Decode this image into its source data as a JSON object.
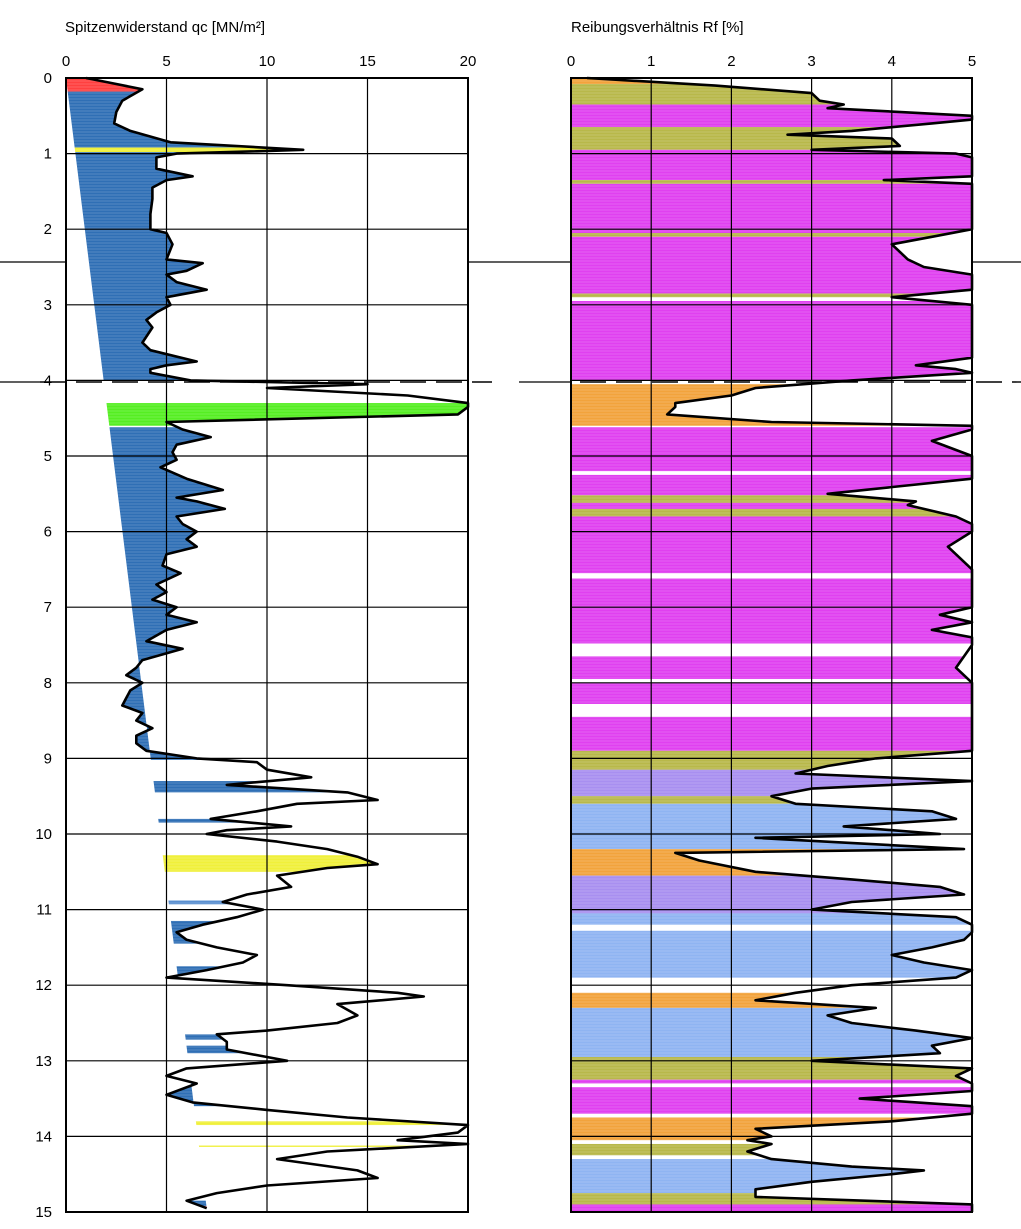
{
  "chart_data": [
    {
      "type": "area",
      "title": "Spitzenwiderstand qc [MN/m²]",
      "xlim": [
        0,
        20
      ],
      "x_ticks": [
        "0",
        "5",
        "10",
        "15",
        "20"
      ],
      "ylim": [
        0,
        15
      ],
      "y_ticks": [
        "0",
        "1",
        "2",
        "3",
        "4",
        "5",
        "6",
        "7",
        "8",
        "9",
        "10",
        "11",
        "12",
        "13",
        "14",
        "15"
      ],
      "grid": true,
      "series": [
        {
          "depth": [
            0.0,
            0.08,
            0.15,
            0.3,
            0.45,
            0.6,
            0.7,
            0.85,
            0.95,
            0.97,
            1.0,
            1.05,
            1.1,
            1.2,
            1.3,
            1.35,
            1.45,
            1.6,
            1.8,
            2.0,
            2.05,
            2.2,
            2.4,
            2.45,
            2.55,
            2.6,
            2.7,
            2.8,
            2.9,
            3.0,
            3.1,
            3.2,
            3.3,
            3.5,
            3.6,
            3.75,
            3.8,
            3.85,
            3.9,
            4.0,
            4.05,
            4.1,
            4.2,
            4.3,
            4.35,
            4.45,
            4.55,
            4.65,
            4.75,
            4.85,
            4.95,
            5.05,
            5.15,
            5.3,
            5.45,
            5.55,
            5.6,
            5.7,
            5.8,
            5.9,
            6.0,
            6.1,
            6.2,
            6.3,
            6.45,
            6.55,
            6.7,
            6.8,
            6.9,
            7.0,
            7.1,
            7.2,
            7.3,
            7.45,
            7.55,
            7.7,
            7.8,
            7.9,
            8.0,
            8.1,
            8.2,
            8.3,
            8.4,
            8.5,
            8.6,
            8.7,
            8.8,
            8.9,
            9.0,
            9.05,
            9.15,
            9.25,
            9.35,
            9.45,
            9.55,
            9.6,
            9.7,
            9.8,
            9.9,
            9.95,
            10.0,
            10.1,
            10.2,
            10.3,
            10.4,
            10.45,
            10.55,
            10.7,
            10.8,
            10.9,
            11.0,
            11.1,
            11.2,
            11.3,
            11.4,
            11.5,
            11.6,
            11.7,
            11.8,
            11.9,
            12.0,
            12.1,
            12.15,
            12.25,
            12.4,
            12.5,
            12.6,
            12.65,
            12.75,
            12.85,
            12.95,
            13.0,
            13.1,
            13.2,
            13.3,
            13.45,
            13.55,
            13.65,
            13.75,
            13.85,
            13.95,
            14.05,
            14.1,
            14.2,
            14.3,
            14.45,
            14.55,
            14.65,
            14.75,
            14.85,
            14.95,
            15.0
          ],
          "qc": [
            1.0,
            2.5,
            3.8,
            2.8,
            2.5,
            2.4,
            3.2,
            5.2,
            11.8,
            9.5,
            5.5,
            4.5,
            4.5,
            4.5,
            6.3,
            5.0,
            4.3,
            4.3,
            4.2,
            4.2,
            5.0,
            5.3,
            5.0,
            6.8,
            6.0,
            5.0,
            5.5,
            7.0,
            5.0,
            5.2,
            4.5,
            4.0,
            4.3,
            3.8,
            4.2,
            6.5,
            5.0,
            4.2,
            4.2,
            6.2,
            15.0,
            10.0,
            17.0,
            20.0,
            20.0,
            19.5,
            5.0,
            5.8,
            7.2,
            5.5,
            5.3,
            5.5,
            4.7,
            6.0,
            7.8,
            5.5,
            6.5,
            7.9,
            5.5,
            5.8,
            6.5,
            6.0,
            6.5,
            5.0,
            4.8,
            5.7,
            4.5,
            5.0,
            4.3,
            5.5,
            5.0,
            6.5,
            5.0,
            4.0,
            5.8,
            3.8,
            3.5,
            3.0,
            3.8,
            3.2,
            3.0,
            2.8,
            3.8,
            3.5,
            4.3,
            3.5,
            3.5,
            4.0,
            6.5,
            9.5,
            10.0,
            12.2,
            8.0,
            14.0,
            15.5,
            11.5,
            9.5,
            7.2,
            11.2,
            8.0,
            7.0,
            10.5,
            13.0,
            14.5,
            15.5,
            13.0,
            10.5,
            11.2,
            9.0,
            7.8,
            9.8,
            8.5,
            6.8,
            5.5,
            6.0,
            7.5,
            9.5,
            8.8,
            7.0,
            5.0,
            11.0,
            16.5,
            17.8,
            13.5,
            14.5,
            13.5,
            10.0,
            7.5,
            8.0,
            8.0,
            10.0,
            11.0,
            6.0,
            5.0,
            6.5,
            5.0,
            6.3,
            10.0,
            14.0,
            20.0,
            19.5,
            16.5,
            20.0,
            13.0,
            10.5,
            14.5,
            15.5,
            10.0,
            7.5,
            6.0,
            7.0
          ]
        }
      ]
    },
    {
      "type": "area",
      "title": "Reibungsverhältnis Rf [%]",
      "xlim": [
        0,
        5
      ],
      "x_ticks": [
        "0",
        "1",
        "2",
        "3",
        "4",
        "5"
      ],
      "ylim": [
        0,
        15
      ],
      "grid": true,
      "series": [
        {
          "depth": [
            0.0,
            0.1,
            0.2,
            0.3,
            0.35,
            0.4,
            0.5,
            0.55,
            0.6,
            0.7,
            0.75,
            0.8,
            0.9,
            0.95,
            1.0,
            1.05,
            1.3,
            1.35,
            1.4,
            1.6,
            1.8,
            2.0,
            2.1,
            2.2,
            2.4,
            2.5,
            2.6,
            2.8,
            2.9,
            3.0,
            3.7,
            3.8,
            3.85,
            3.9,
            4.0,
            4.1,
            4.2,
            4.3,
            4.35,
            4.45,
            4.55,
            4.6,
            4.65,
            4.8,
            5.0,
            5.3,
            5.5,
            5.6,
            5.65,
            5.8,
            5.9,
            6.0,
            6.2,
            6.3,
            6.5,
            7.0,
            7.1,
            7.2,
            7.3,
            7.4,
            7.5,
            7.8,
            8.0,
            8.5,
            8.7,
            8.9,
            9.0,
            9.1,
            9.2,
            9.3,
            9.4,
            9.5,
            9.6,
            9.7,
            9.8,
            9.9,
            10.0,
            10.05,
            10.2,
            10.25,
            10.35,
            10.5,
            10.6,
            10.7,
            10.8,
            10.9,
            11.0,
            11.1,
            11.2,
            11.3,
            11.4,
            11.5,
            11.6,
            11.7,
            11.8,
            11.9,
            12.0,
            12.1,
            12.2,
            12.3,
            12.4,
            12.5,
            12.6,
            12.7,
            12.8,
            12.9,
            13.0,
            13.1,
            13.2,
            13.3,
            13.4,
            13.5,
            13.6,
            13.7,
            13.8,
            13.9,
            14.0,
            14.05,
            14.1,
            14.2,
            14.3,
            14.4,
            14.45,
            14.5,
            14.6,
            14.7,
            14.8,
            14.9,
            15.0
          ],
          "rf": [
            0.2,
            1.8,
            3.0,
            3.1,
            3.4,
            3.2,
            5.0,
            5.0,
            4.5,
            3.5,
            2.7,
            4.0,
            4.1,
            3.0,
            4.8,
            5.0,
            5.0,
            3.9,
            5.0,
            5.0,
            5.0,
            5.0,
            4.5,
            4.0,
            4.2,
            4.4,
            5.0,
            5.0,
            4.0,
            5.0,
            5.0,
            4.3,
            4.8,
            5.0,
            3.5,
            2.3,
            2.0,
            1.3,
            1.3,
            1.2,
            2.5,
            5.0,
            5.0,
            4.5,
            5.0,
            5.0,
            3.2,
            4.3,
            4.2,
            4.8,
            5.0,
            5.0,
            4.7,
            4.8,
            5.0,
            5.0,
            4.6,
            5.0,
            4.5,
            5.0,
            5.0,
            4.8,
            5.0,
            5.0,
            5.0,
            5.0,
            3.8,
            3.2,
            2.8,
            5.0,
            3.0,
            2.5,
            2.8,
            4.5,
            4.8,
            3.4,
            4.6,
            2.3,
            4.9,
            1.3,
            1.6,
            2.3,
            3.5,
            4.6,
            4.9,
            3.5,
            3.0,
            4.8,
            5.0,
            5.0,
            4.9,
            4.5,
            4.0,
            4.4,
            5.0,
            4.8,
            3.5,
            2.8,
            2.3,
            3.8,
            3.2,
            3.5,
            4.3,
            5.0,
            4.5,
            4.6,
            3.0,
            5.0,
            4.8,
            5.0,
            5.0,
            3.6,
            5.0,
            5.0,
            4.0,
            2.3,
            2.5,
            2.2,
            2.5,
            2.2,
            2.5,
            3.5,
            4.4,
            4.0,
            3.0,
            2.3,
            2.3,
            5.0,
            5.0
          ]
        }
      ]
    }
  ],
  "colors": {
    "clay": "#2f6fb5",
    "clay_light": "#5a8fd0",
    "organic": "#e040f0",
    "silt": "#b8b84a",
    "silt_blue": "#8fb4f2",
    "lilac": "#a88ff0",
    "sand_yellow": "#f0f03a",
    "gravel_green": "#55ee22",
    "fill_red": "#ff4040",
    "fill_pink": "#ff6f8f",
    "orange": "#f2a33c"
  }
}
